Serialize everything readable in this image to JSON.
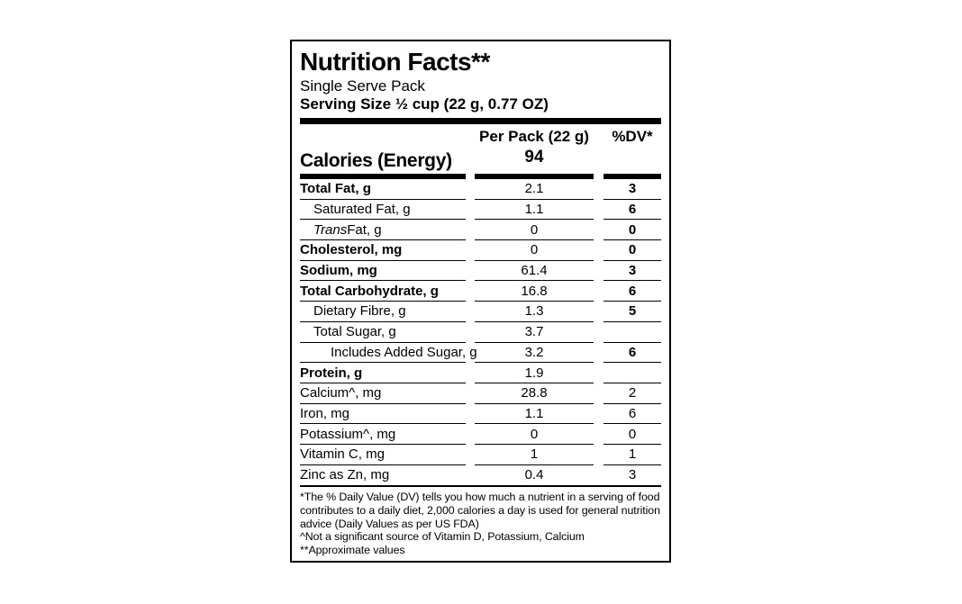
{
  "label": {
    "title": "Nutrition Facts**",
    "subtitle": "Single Serve Pack",
    "serving_size": "Serving Size ½ cup (22 g, 0.77 OZ)",
    "header": {
      "amount_column": "Per Pack (22 g)",
      "dv_column": "%DV*",
      "calories_label": "Calories (Energy)",
      "calories_value": "94"
    },
    "rows": [
      {
        "label": "Total Fat, g",
        "value": "2.1",
        "dv": "3",
        "bold": true,
        "indent": 0,
        "dv_bold": true
      },
      {
        "label": "Saturated Fat, g",
        "value": "1.1",
        "dv": "6",
        "bold": false,
        "indent": 1,
        "dv_bold": true
      },
      {
        "label_italic": "Trans",
        "label": " Fat, g",
        "value": "0",
        "dv": "0",
        "bold": false,
        "indent": 1,
        "dv_bold": true
      },
      {
        "label": "Cholesterol, mg",
        "value": "0",
        "dv": "0",
        "bold": true,
        "indent": 0,
        "dv_bold": true
      },
      {
        "label": "Sodium, mg",
        "value": "61.4",
        "dv": "3",
        "bold": true,
        "indent": 0,
        "dv_bold": true
      },
      {
        "label": "Total Carbohydrate, g",
        "value": "16.8",
        "dv": "6",
        "bold": true,
        "indent": 0,
        "dv_bold": true
      },
      {
        "label": "Dietary Fibre, g",
        "value": "1.3",
        "dv": "5",
        "bold": false,
        "indent": 1,
        "dv_bold": true
      },
      {
        "label": "Total Sugar, g",
        "value": "3.7",
        "dv": "",
        "bold": false,
        "indent": 1,
        "dv_bold": true
      },
      {
        "label": "Includes Added Sugar, g",
        "value": "3.2",
        "dv": "6",
        "bold": false,
        "indent": 2,
        "dv_bold": true
      },
      {
        "label": "Protein, g",
        "value": "1.9",
        "dv": "",
        "bold": true,
        "indent": 0,
        "dv_bold": false
      },
      {
        "label": "Calcium^, mg",
        "value": "28.8",
        "dv": "2",
        "bold": false,
        "indent": 0,
        "dv_bold": false
      },
      {
        "label": "Iron, mg",
        "value": "1.1",
        "dv": "6",
        "bold": false,
        "indent": 0,
        "dv_bold": false
      },
      {
        "label": "Potassium^, mg",
        "value": "0",
        "dv": "0",
        "bold": false,
        "indent": 0,
        "dv_bold": false
      },
      {
        "label": "Vitamin C, mg",
        "value": "1",
        "dv": "1",
        "bold": false,
        "indent": 0,
        "dv_bold": false
      },
      {
        "label": "Zinc as Zn, mg",
        "value": "0.4",
        "dv": "3",
        "bold": false,
        "indent": 0,
        "dv_bold": false
      }
    ],
    "footnotes": [
      "*The % Daily Value (DV) tells you how much a nutrient in a serving of food contributes to a daily diet, 2,000 calories a day is used for general nutrition advice (Daily Values as per US FDA)",
      "^Not a significant source of Vitamin D, Potassium, Calcium",
      "**Approximate values"
    ],
    "colors": {
      "text": "#000000",
      "background": "#ffffff"
    }
  }
}
